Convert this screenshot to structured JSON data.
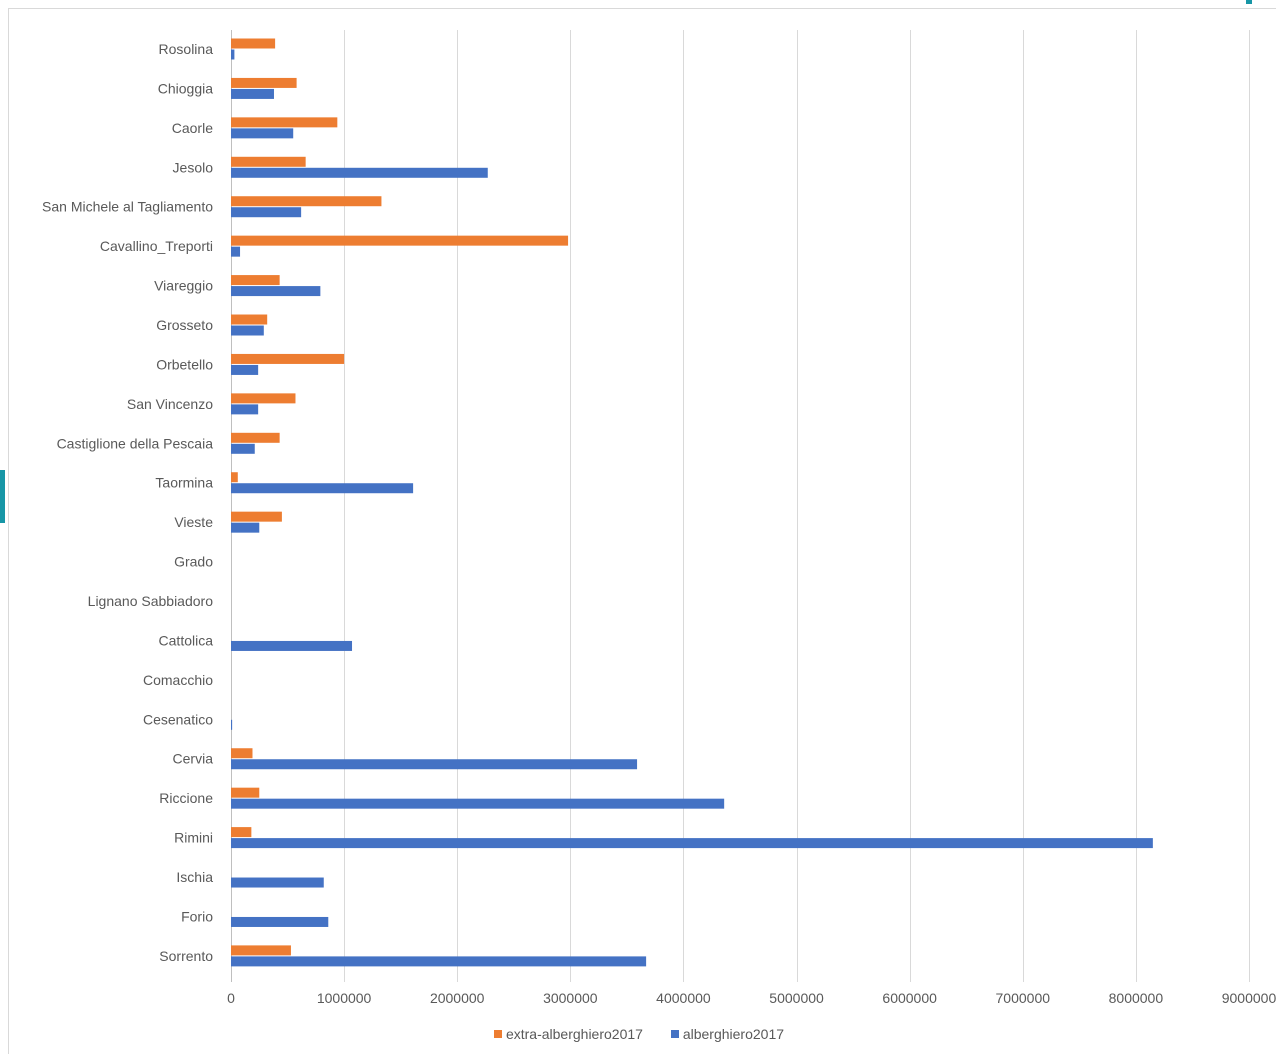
{
  "chart_data": {
    "type": "bar",
    "orientation": "horizontal",
    "categories": [
      "Rosolina",
      "Chioggia",
      "Caorle",
      "Jesolo",
      "San Michele al Tagliamento",
      "Cavallino_Treporti",
      "Viareggio",
      "Grosseto",
      "Orbetello",
      "San Vincenzo",
      "Castiglione della Pescaia",
      "Taormina",
      "Vieste",
      "Grado",
      "Lignano Sabbiadoro",
      "Cattolica",
      "Comacchio",
      "Cesenatico",
      "Cervia",
      "Riccione",
      "Rimini",
      "Ischia",
      "Forio",
      "Sorrento"
    ],
    "series": [
      {
        "name": "extra-alberghiero2017",
        "color": "#ed7d31",
        "values": [
          390000,
          580000,
          940000,
          660000,
          1330000,
          2980000,
          430000,
          320000,
          1000000,
          570000,
          430000,
          60000,
          450000,
          0,
          0,
          0,
          0,
          0,
          190000,
          250000,
          180000,
          0,
          0,
          530000
        ]
      },
      {
        "name": "alberghiero2017",
        "color": "#4472c4",
        "values": [
          30000,
          380000,
          550000,
          2270000,
          620000,
          80000,
          790000,
          290000,
          240000,
          240000,
          210000,
          1610000,
          250000,
          0,
          0,
          1070000,
          0,
          10000,
          3590000,
          4360000,
          8150000,
          820000,
          860000,
          3670000
        ]
      }
    ],
    "xlim": [
      0,
      9000000
    ],
    "xticks": [
      "0",
      "1000000",
      "2000000",
      "3000000",
      "4000000",
      "5000000",
      "6000000",
      "7000000",
      "8000000",
      "9000000"
    ],
    "xtick_values": [
      0,
      1000000,
      2000000,
      3000000,
      4000000,
      5000000,
      6000000,
      7000000,
      8000000,
      9000000
    ],
    "title": "",
    "xlabel": "",
    "ylabel": "",
    "grid": "vertical",
    "legend_position": "bottom"
  }
}
